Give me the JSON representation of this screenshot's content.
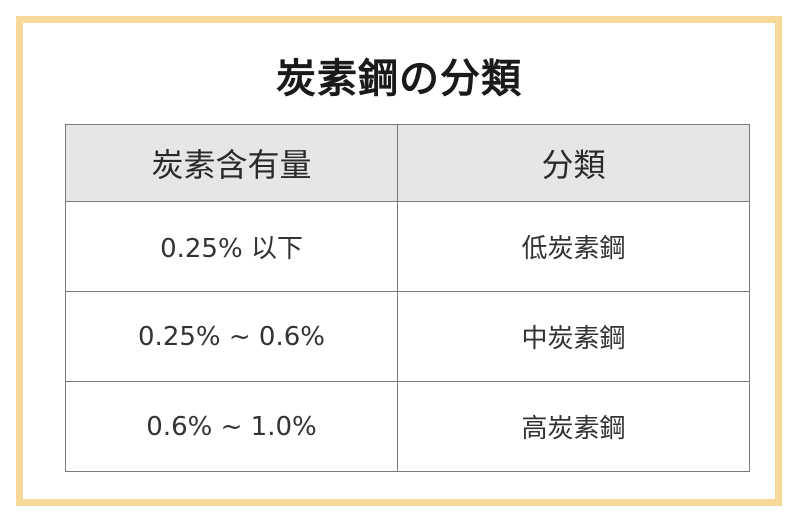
{
  "title": "炭素鋼の分類",
  "table": {
    "headers": [
      "炭素含有量",
      "分類"
    ],
    "rows": [
      [
        "0.25% 以下",
        "低炭素鋼"
      ],
      [
        "0.25% ~ 0.6%",
        "中炭素鋼"
      ],
      [
        "0.6% ~ 1.0%",
        "高炭素鋼"
      ]
    ]
  },
  "colors": {
    "border_frame": "#f9d99a",
    "header_background": "#e6e6e6",
    "table_lines": "#7a7a7a"
  }
}
